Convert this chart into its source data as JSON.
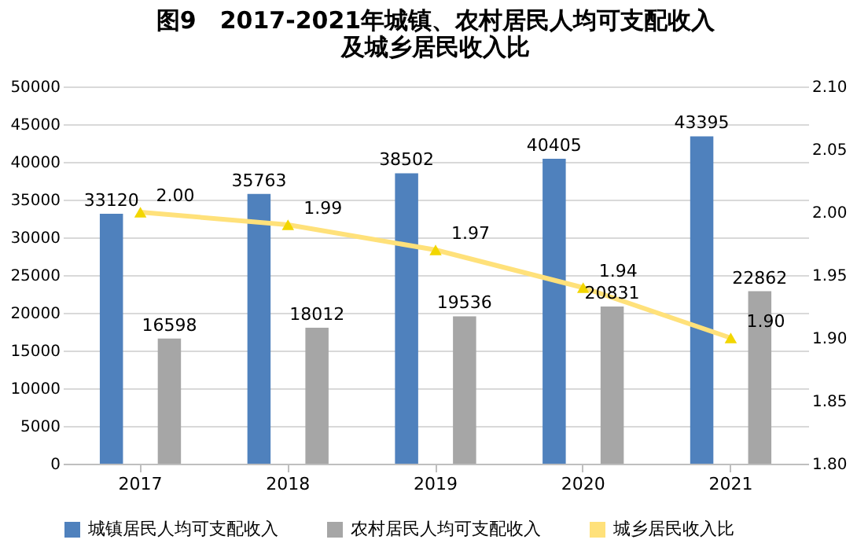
{
  "chart_data": {
    "type": "bar",
    "title": "图9　2017-2021年城镇、农村居民人均可支配收入及城乡居民收入比",
    "categories": [
      "2017",
      "2018",
      "2019",
      "2020",
      "2021"
    ],
    "series": [
      {
        "name": "城镇居民人均可支配收入",
        "color": "#4f81bd",
        "values": [
          33120,
          35763,
          38502,
          40405,
          43395
        ]
      },
      {
        "name": "农村居民人均可支配收入",
        "color": "#a6a6a6",
        "values": [
          16598,
          18012,
          19536,
          20831,
          22862
        ]
      },
      {
        "name": "城乡居民收入比",
        "type": "line",
        "axis": "y2",
        "color": "#ffe17a",
        "marker": "triangle",
        "values": [
          2.0,
          1.99,
          1.97,
          1.94,
          1.9
        ],
        "value_labels": [
          "2.00",
          "1.99",
          "1.97",
          "1.94",
          "1.90"
        ]
      }
    ],
    "data_labels": true,
    "ylim": [
      0,
      50000
    ],
    "yticks": [
      0,
      5000,
      10000,
      15000,
      20000,
      25000,
      30000,
      35000,
      40000,
      45000,
      50000
    ],
    "y2lim": [
      1.8,
      2.1
    ],
    "y2ticks": [
      {
        "value": 1.8,
        "label": "1.80"
      },
      {
        "value": 1.85,
        "label": "1.85"
      },
      {
        "value": 1.9,
        "label": "1.90"
      },
      {
        "value": 1.95,
        "label": "1.95"
      },
      {
        "value": 2.0,
        "label": "2.00"
      },
      {
        "value": 2.05,
        "label": "2.05"
      },
      {
        "value": 2.1,
        "label": "2.10"
      }
    ],
    "grid": "y",
    "legend": "bottom"
  }
}
